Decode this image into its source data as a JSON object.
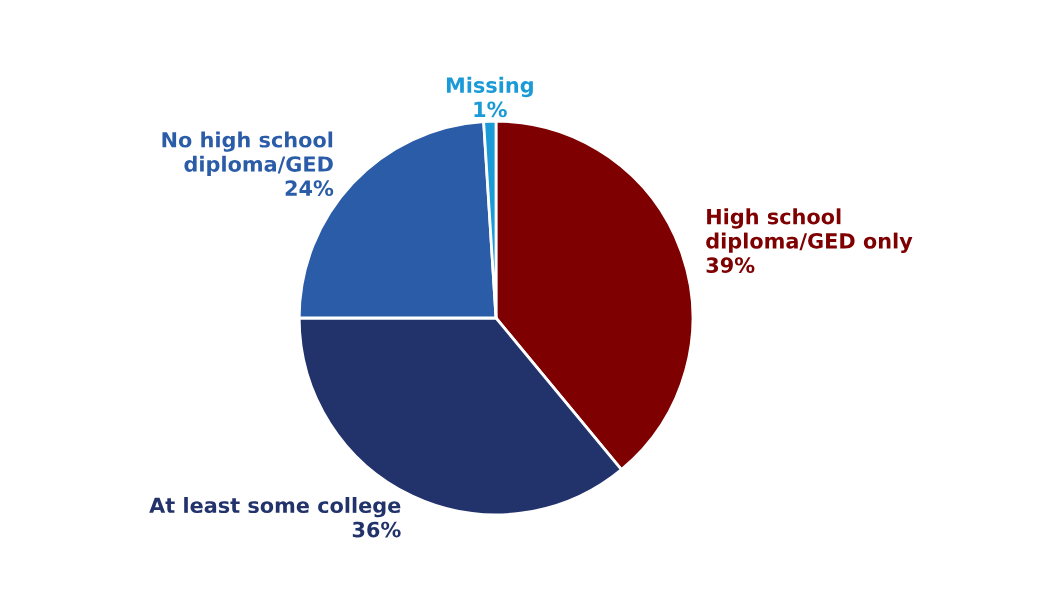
{
  "chart_data": {
    "type": "pie",
    "categories": [
      "High school\ndiploma/GED only",
      "At least some college",
      "No high school\ndiploma/GED",
      "Missing"
    ],
    "values": [
      39,
      36,
      24,
      1
    ],
    "value_labels": [
      "39%",
      "36%",
      "24%",
      "1%"
    ],
    "colors": [
      "#7f0000",
      "#22336b",
      "#2b5ca8",
      "#1a9ad6"
    ]
  }
}
